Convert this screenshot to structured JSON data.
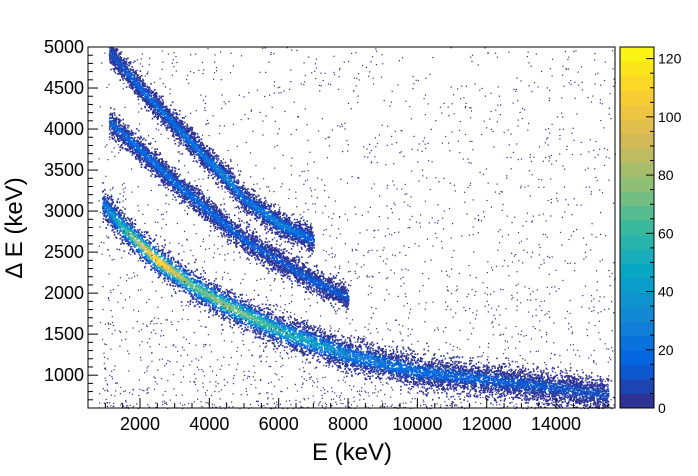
{
  "chart_data": {
    "type": "heatmap",
    "title": "",
    "xlabel": "E (keV)",
    "ylabel": "Δ E (keV)",
    "xlim": [
      500,
      15700
    ],
    "ylim": [
      600,
      5000
    ],
    "x_ticks": [
      "2000",
      "4000",
      "6000",
      "8000",
      "10000",
      "12000",
      "14000"
    ],
    "x_tick_values": [
      2000,
      4000,
      6000,
      8000,
      10000,
      12000,
      14000
    ],
    "y_ticks": [
      "1000",
      "1500",
      "2000",
      "2500",
      "3000",
      "3500",
      "4000",
      "4500",
      "5000"
    ],
    "y_tick_values": [
      1000,
      1500,
      2000,
      2500,
      3000,
      3500,
      4000,
      4500,
      5000
    ],
    "colorbar": {
      "min": 0,
      "max": 124,
      "ticks": [
        "0",
        "20",
        "40",
        "60",
        "80",
        "100",
        "120"
      ],
      "tick_values": [
        0,
        20,
        40,
        60,
        80,
        100,
        120
      ]
    },
    "grid": false,
    "bands": [
      {
        "x": [
          900,
          1500,
          2500,
          3500,
          4500,
          6000,
          8000,
          10000,
          12000,
          14000,
          15500
        ],
        "y": [
          3100,
          2800,
          2400,
          2100,
          1850,
          1550,
          1250,
          1050,
          950,
          850,
          760
        ],
        "peak_counts": [
          20,
          60,
          120,
          70,
          80,
          60,
          30,
          20,
          15,
          12,
          10
        ]
      },
      {
        "x": [
          1100,
          2000,
          3000,
          4000,
          5000,
          6000,
          7000,
          8000
        ],
        "y": [
          4100,
          3750,
          3350,
          3000,
          2650,
          2400,
          2150,
          1950
        ],
        "peak_counts": [
          15,
          20,
          20,
          18,
          15,
          12,
          15,
          12
        ]
      },
      {
        "x": [
          1100,
          2000,
          3000,
          4000,
          4500,
          5000,
          6000,
          7000
        ],
        "y": [
          4950,
          4500,
          4050,
          3600,
          3400,
          3150,
          2850,
          2650
        ],
        "peak_counts": [
          10,
          18,
          20,
          25,
          35,
          20,
          30,
          15
        ]
      }
    ],
    "colormap": [
      "#352a87",
      "#0363e1",
      "#1485d4",
      "#06a7c6",
      "#38b99e",
      "#92bf73",
      "#d9ba56",
      "#fcce2e",
      "#f9fb0e"
    ]
  }
}
